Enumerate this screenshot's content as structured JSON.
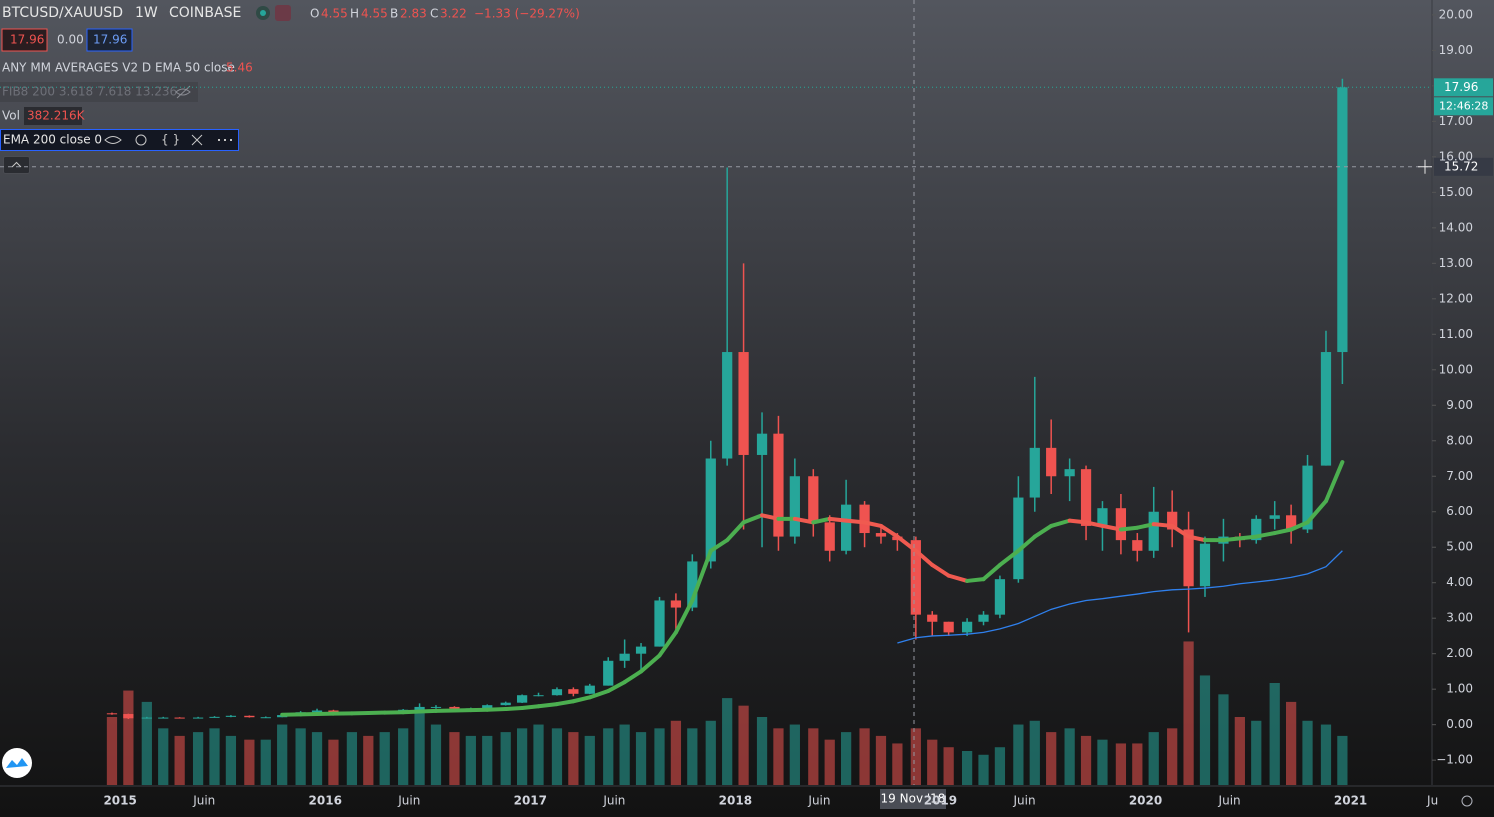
{
  "header": {
    "symbol": "BTCUSD/XAUUSD",
    "interval": "1W",
    "exchange": "COINBASE",
    "o_label": "O",
    "o": "4.55",
    "h_label": "H",
    "h": "4.55",
    "b_label": "B",
    "b": "2.83",
    "c_label": "C",
    "c": "3.22",
    "change": "−1.33 (−29.27%)"
  },
  "indicators": {
    "row1": [
      "17.96",
      "0.00",
      "17.96"
    ],
    "ema50_name": "ANY MM AVERAGES V2 D EMA 50 close",
    "ema50_value": "5.46",
    "fib": "FIB8 200 3.618 7.618 13.236",
    "vol_name": "Vol",
    "vol_value": "382.216K",
    "ema200_name": "EMA 200 close 0"
  },
  "price_label": {
    "last": 17.96,
    "timer": "12:46:28"
  },
  "crosshair": {
    "price": 15.72,
    "date": "19 Nov '18"
  },
  "chart_data": {
    "type": "candlestick",
    "up_color": "#26a69a",
    "down_color": "#ef5350",
    "xlim": [
      2014.414,
      2021.397
    ],
    "ylim": [
      -1.7,
      20.42
    ],
    "yticks": [
      {
        "value": 20,
        "label": "20.00"
      },
      {
        "value": 19,
        "label": "19.00"
      },
      {
        "value": 18,
        "label": "18.00"
      },
      {
        "value": 17,
        "label": "17.00"
      },
      {
        "value": 16,
        "label": "16.00"
      },
      {
        "value": 15,
        "label": "15.00"
      },
      {
        "value": 14,
        "label": "14.00"
      },
      {
        "value": 13,
        "label": "13.00"
      },
      {
        "value": 12,
        "label": "12.00"
      },
      {
        "value": 11,
        "label": "11.00"
      },
      {
        "value": 10,
        "label": "10.00"
      },
      {
        "value": 9,
        "label": "9.00"
      },
      {
        "value": 8,
        "label": "8.00"
      },
      {
        "value": 7,
        "label": "7.00"
      },
      {
        "value": 6,
        "label": "6.00"
      },
      {
        "value": 5,
        "label": "5.00"
      },
      {
        "value": 4,
        "label": "4.00"
      },
      {
        "value": 3,
        "label": "3.00"
      },
      {
        "value": 2,
        "label": "2.00"
      },
      {
        "value": 1,
        "label": "1.00"
      },
      {
        "value": 0,
        "label": "0.00"
      },
      {
        "value": -1,
        "label": "−1.00"
      }
    ],
    "xticks": [
      {
        "value": 2015,
        "label": "2015"
      },
      {
        "value": 2015.41,
        "label": "Juin"
      },
      {
        "value": 2016,
        "label": "2016"
      },
      {
        "value": 2016.41,
        "label": "Juin"
      },
      {
        "value": 2017,
        "label": "2017"
      },
      {
        "value": 2017.41,
        "label": "Juin"
      },
      {
        "value": 2018,
        "label": "2018"
      },
      {
        "value": 2018.41,
        "label": "Juin"
      },
      {
        "value": 2019,
        "label": "2019"
      },
      {
        "value": 2019.41,
        "label": "Juin"
      },
      {
        "value": 2020,
        "label": "2020"
      },
      {
        "value": 2020.41,
        "label": "Juin"
      },
      {
        "value": 2021,
        "label": "2021"
      },
      {
        "value": 2021.4,
        "label": "Ju"
      }
    ],
    "x": [
      2014.96,
      2015.04,
      2015.13,
      2015.21,
      2015.29,
      2015.38,
      2015.46,
      2015.54,
      2015.63,
      2015.71,
      2015.79,
      2015.88,
      2015.96,
      2016.04,
      2016.13,
      2016.21,
      2016.29,
      2016.38,
      2016.46,
      2016.54,
      2016.63,
      2016.71,
      2016.79,
      2016.88,
      2016.96,
      2017.04,
      2017.13,
      2017.21,
      2017.29,
      2017.38,
      2017.46,
      2017.54,
      2017.63,
      2017.71,
      2017.79,
      2017.88,
      2017.96,
      2018.04,
      2018.13,
      2018.21,
      2018.29,
      2018.38,
      2018.46,
      2018.54,
      2018.63,
      2018.71,
      2018.79,
      2018.88,
      2018.96,
      2019.04,
      2019.13,
      2019.21,
      2019.29,
      2019.38,
      2019.46,
      2019.54,
      2019.63,
      2019.71,
      2019.79,
      2019.88,
      2019.96,
      2020.04,
      2020.13,
      2020.21,
      2020.29,
      2020.38,
      2020.46,
      2020.54,
      2020.63,
      2020.71,
      2020.79,
      2020.88,
      2020.96
    ],
    "open": [
      0.32,
      0.3,
      0.18,
      0.2,
      0.2,
      0.19,
      0.2,
      0.22,
      0.25,
      0.21,
      0.21,
      0.27,
      0.35,
      0.4,
      0.33,
      0.34,
      0.33,
      0.36,
      0.42,
      0.5,
      0.5,
      0.45,
      0.46,
      0.55,
      0.62,
      0.83,
      0.83,
      1.0,
      0.87,
      1.1,
      1.8,
      2.0,
      2.2,
      3.5,
      3.3,
      4.6,
      7.5,
      10.5,
      7.6,
      8.2,
      5.3,
      7.0,
      5.7,
      4.9,
      6.2,
      5.4,
      5.3,
      5.2,
      3.1,
      2.9,
      2.6,
      2.9,
      3.1,
      4.1,
      6.4,
      7.8,
      7.0,
      7.2,
      5.6,
      6.1,
      5.2,
      4.9,
      6.0,
      5.5,
      3.9,
      5.1,
      5.3,
      5.2,
      5.8,
      5.9,
      5.5,
      7.3,
      10.5
    ],
    "high": [
      0.34,
      0.31,
      0.22,
      0.22,
      0.21,
      0.22,
      0.24,
      0.27,
      0.26,
      0.23,
      0.29,
      0.38,
      0.45,
      0.42,
      0.36,
      0.36,
      0.38,
      0.44,
      0.6,
      0.55,
      0.52,
      0.48,
      0.57,
      0.65,
      0.85,
      0.9,
      1.05,
      1.05,
      1.15,
      1.9,
      2.4,
      2.3,
      3.6,
      3.7,
      4.8,
      8.0,
      15.7,
      13.0,
      8.8,
      8.7,
      7.5,
      7.2,
      5.9,
      6.9,
      6.3,
      5.6,
      5.4,
      5.3,
      3.2,
      2.9,
      3.0,
      3.2,
      4.2,
      7.0,
      9.8,
      8.6,
      7.5,
      7.3,
      6.3,
      6.5,
      5.4,
      6.7,
      6.6,
      6.0,
      5.3,
      5.8,
      5.4,
      5.9,
      6.3,
      6.2,
      7.6,
      11.1,
      18.2
    ],
    "low": [
      0.28,
      0.16,
      0.17,
      0.18,
      0.18,
      0.19,
      0.2,
      0.21,
      0.2,
      0.2,
      0.21,
      0.26,
      0.33,
      0.31,
      0.32,
      0.32,
      0.33,
      0.35,
      0.42,
      0.45,
      0.43,
      0.44,
      0.46,
      0.54,
      0.61,
      0.8,
      0.82,
      0.8,
      0.86,
      1.1,
      1.6,
      1.5,
      2.2,
      2.6,
      3.2,
      4.4,
      7.3,
      5.5,
      5.0,
      4.9,
      5.1,
      5.3,
      4.6,
      4.8,
      5.0,
      5.1,
      4.9,
      2.4,
      2.5,
      2.5,
      2.5,
      2.8,
      3.0,
      4.0,
      6.0,
      6.5,
      6.3,
      5.2,
      4.9,
      4.8,
      4.6,
      4.7,
      5.0,
      2.6,
      3.6,
      4.6,
      5.0,
      5.1,
      5.5,
      5.1,
      5.4,
      7.3,
      9.6
    ],
    "close": [
      0.3,
      0.18,
      0.2,
      0.2,
      0.19,
      0.2,
      0.22,
      0.25,
      0.21,
      0.21,
      0.27,
      0.35,
      0.4,
      0.33,
      0.34,
      0.33,
      0.36,
      0.42,
      0.5,
      0.5,
      0.45,
      0.46,
      0.55,
      0.62,
      0.83,
      0.83,
      1.0,
      0.87,
      1.1,
      1.8,
      2.0,
      2.2,
      3.5,
      3.3,
      4.6,
      7.5,
      10.5,
      7.6,
      8.2,
      5.3,
      7.0,
      5.7,
      4.9,
      6.2,
      5.4,
      5.3,
      5.2,
      3.1,
      2.9,
      2.6,
      2.9,
      3.1,
      4.1,
      6.4,
      7.8,
      7.0,
      7.2,
      5.6,
      6.1,
      5.2,
      4.9,
      6.0,
      5.5,
      3.9,
      5.1,
      5.3,
      5.2,
      5.8,
      5.9,
      5.5,
      7.3,
      10.5,
      17.96
    ],
    "vlim": [
      0,
      4500
    ],
    "volume": [
      1800,
      2500,
      2200,
      1500,
      1300,
      1400,
      1500,
      1300,
      1200,
      1200,
      1600,
      1500,
      1400,
      1200,
      1400,
      1300,
      1400,
      1500,
      2000,
      1600,
      1400,
      1300,
      1300,
      1400,
      1500,
      1600,
      1500,
      1400,
      1300,
      1500,
      1600,
      1400,
      1500,
      1700,
      1500,
      1700,
      2300,
      2100,
      1800,
      1500,
      1600,
      1500,
      1200,
      1400,
      1500,
      1300,
      1100,
      1500,
      1200,
      1000,
      900,
      800,
      1000,
      1600,
      1700,
      1400,
      1500,
      1300,
      1200,
      1100,
      1100,
      1400,
      1500,
      3800,
      2900,
      2400,
      1800,
      1700,
      2700,
      2200,
      1700,
      1600,
      1300
    ],
    "ema50": {
      "up_color": "#4caf50",
      "down_color": "#f05a50",
      "x": [
        2015.79,
        2015.88,
        2015.96,
        2016.04,
        2016.13,
        2016.21,
        2016.29,
        2016.38,
        2016.46,
        2016.54,
        2016.63,
        2016.71,
        2016.79,
        2016.88,
        2016.96,
        2017.04,
        2017.13,
        2017.21,
        2017.29,
        2017.38,
        2017.46,
        2017.54,
        2017.63,
        2017.71,
        2017.79,
        2017.88,
        2017.96,
        2018.04,
        2018.13,
        2018.21,
        2018.29,
        2018.38,
        2018.46,
        2018.54,
        2018.63,
        2018.71,
        2018.79,
        2018.88,
        2018.96,
        2019.04,
        2019.13,
        2019.21,
        2019.29,
        2019.38,
        2019.46,
        2019.54,
        2019.63,
        2019.71,
        2019.79,
        2019.88,
        2019.96,
        2020.04,
        2020.13,
        2020.21,
        2020.29,
        2020.38,
        2020.46,
        2020.54,
        2020.63,
        2020.71,
        2020.79,
        2020.88,
        2020.96
      ],
      "values": [
        0.28,
        0.29,
        0.3,
        0.31,
        0.32,
        0.33,
        0.34,
        0.35,
        0.37,
        0.39,
        0.4,
        0.41,
        0.42,
        0.44,
        0.47,
        0.52,
        0.58,
        0.66,
        0.77,
        0.95,
        1.2,
        1.5,
        1.95,
        2.6,
        3.5,
        4.9,
        5.2,
        5.7,
        5.9,
        5.8,
        5.8,
        5.7,
        5.8,
        5.75,
        5.7,
        5.6,
        5.3,
        4.9,
        4.5,
        4.2,
        4.05,
        4.1,
        4.5,
        4.9,
        5.3,
        5.6,
        5.75,
        5.7,
        5.6,
        5.5,
        5.55,
        5.65,
        5.6,
        5.3,
        5.2,
        5.2,
        5.25,
        5.3,
        5.4,
        5.5,
        5.7,
        6.3,
        7.4
      ]
    },
    "ema200": {
      "color": "#2f80ed",
      "x": [
        2018.79,
        2018.88,
        2018.96,
        2019.04,
        2019.13,
        2019.21,
        2019.29,
        2019.38,
        2019.46,
        2019.54,
        2019.63,
        2019.71,
        2019.79,
        2019.88,
        2019.96,
        2020.04,
        2020.13,
        2020.21,
        2020.29,
        2020.38,
        2020.46,
        2020.54,
        2020.63,
        2020.71,
        2020.79,
        2020.88,
        2020.96
      ],
      "values": [
        2.3,
        2.45,
        2.5,
        2.52,
        2.55,
        2.6,
        2.7,
        2.85,
        3.05,
        3.25,
        3.4,
        3.5,
        3.55,
        3.62,
        3.68,
        3.75,
        3.8,
        3.82,
        3.85,
        3.9,
        3.97,
        4.02,
        4.08,
        4.15,
        4.25,
        4.45,
        4.9
      ]
    }
  }
}
